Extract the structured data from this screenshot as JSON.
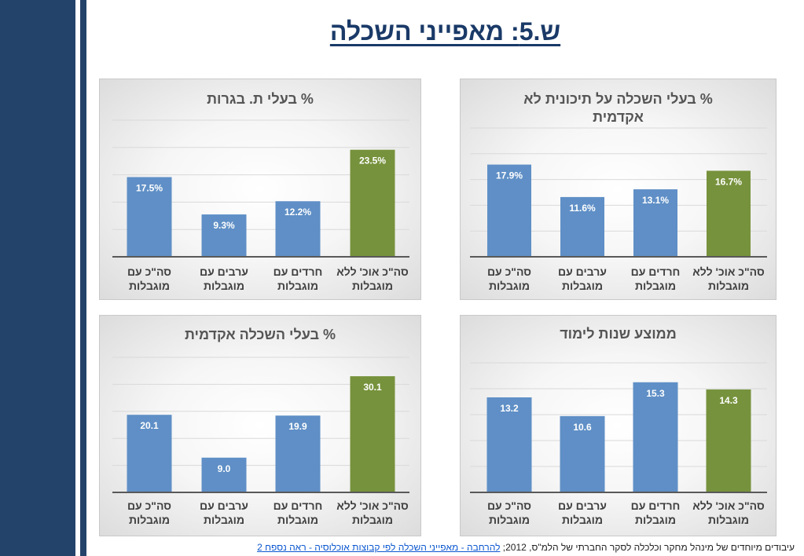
{
  "page": {
    "title": "ש.5: מאפייני השכלה",
    "footer_text": "עיבודים מיוחדים של מינהל מחקר וכלכלה  לסקר החברתי של הלמ\"ס, 2012;",
    "footer_link": "להרחבה - מאפייני השכלה לפי קבוצות אוכלוסיה - ראה נספח 2"
  },
  "colors": {
    "blue": "#5f8fc6",
    "green": "#76923c",
    "axis": "#595959",
    "grid": "#d9d9d9",
    "sidebar": "#24436a"
  },
  "chart_data": [
    {
      "type": "bar",
      "title": "% בעלי ת. בגרות",
      "categories": [
        "סה\"כ עם מוגבלות",
        "ערבים עם מוגבלות",
        "חרדים עם מוגבלות",
        "סה\"כ אוכ' ללא מוגבלות"
      ],
      "values": [
        17.5,
        9.3,
        12.2,
        23.5
      ],
      "labels": [
        "17.5%",
        "9.3%",
        "12.2%",
        "23.5%"
      ],
      "bar_colors": [
        "#5f8fc6",
        "#5f8fc6",
        "#5f8fc6",
        "#76923c"
      ],
      "ylim": [
        0,
        30
      ],
      "grid": true
    },
    {
      "type": "bar",
      "title": "% בעלי השכלה על תיכונית לא אקדמית",
      "categories": [
        "סה\"כ עם מוגבלות",
        "ערבים עם מוגבלות",
        "חרדים עם מוגבלות",
        "סה\"כ אוכ' ללא מוגבלות"
      ],
      "values": [
        17.9,
        11.6,
        13.1,
        16.7
      ],
      "labels": [
        "17.9%",
        "11.6%",
        "13.1%",
        "16.7%"
      ],
      "bar_colors": [
        "#5f8fc6",
        "#5f8fc6",
        "#5f8fc6",
        "#76923c"
      ],
      "ylim": [
        0,
        25
      ],
      "grid": true
    },
    {
      "type": "bar",
      "title": "% בעלי השכלה אקדמית",
      "categories": [
        "סה\"כ עם מוגבלות",
        "ערבים עם מוגבלות",
        "חרדים עם מוגבלות",
        "סה\"כ אוכ' ללא מוגבלות"
      ],
      "values": [
        20.1,
        9.0,
        19.9,
        30.1
      ],
      "labels": [
        "20.1",
        "9.0",
        "19.9",
        "30.1"
      ],
      "bar_colors": [
        "#5f8fc6",
        "#5f8fc6",
        "#5f8fc6",
        "#76923c"
      ],
      "ylim": [
        0,
        35
      ],
      "grid": true
    },
    {
      "type": "bar",
      "title": "ממוצע שנות לימוד",
      "categories": [
        "סה\"כ עם מוגבלות",
        "ערבים עם מוגבלות",
        "חרדים עם מוגבלות",
        "סה\"כ אוכ' ללא מוגבלות"
      ],
      "values": [
        13.2,
        10.6,
        15.3,
        14.3
      ],
      "labels": [
        "13.2",
        "10.6",
        "15.3",
        "14.3"
      ],
      "bar_colors": [
        "#5f8fc6",
        "#5f8fc6",
        "#5f8fc6",
        "#76923c"
      ],
      "ylim": [
        0,
        18
      ],
      "grid": true
    }
  ]
}
